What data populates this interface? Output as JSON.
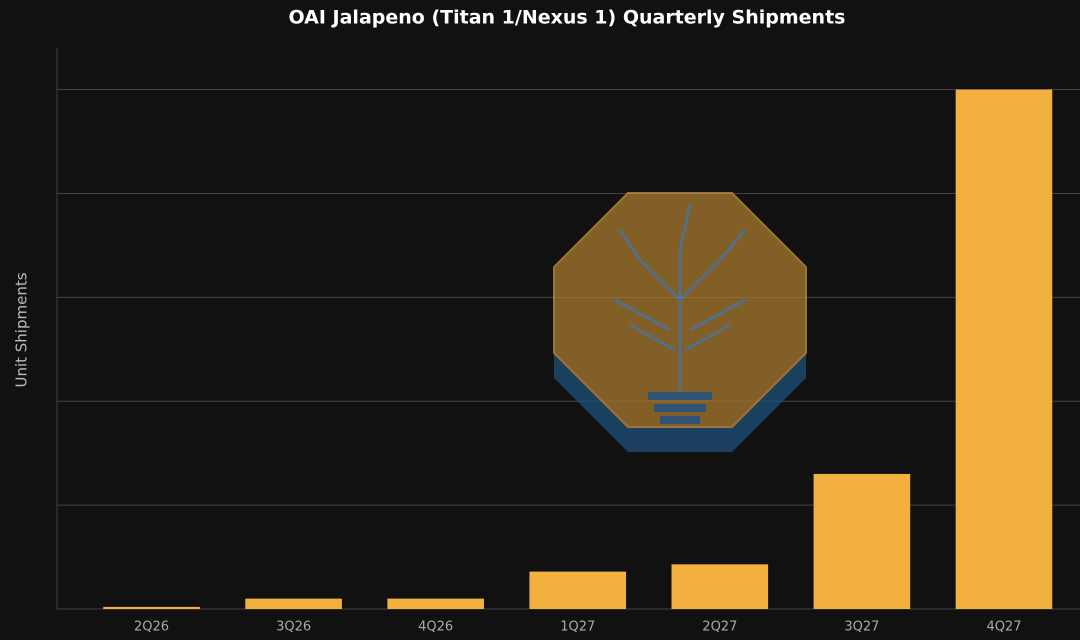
{
  "chart_data": {
    "type": "bar",
    "title": "OAI Jalapeno (Titan 1/Nexus 1) Quarterly Shipments",
    "y_label": "Unit Shipments",
    "categories": [
      "2Q26",
      "3Q26",
      "4Q26",
      "1Q27",
      "2Q27",
      "3Q27",
      "4Q27"
    ],
    "values": [
      0.02,
      0.1,
      0.1,
      0.36,
      0.43,
      1.3,
      5.0
    ],
    "color": "#f2b03f",
    "ylim": [
      0,
      5.4
    ],
    "yticks": [
      0,
      1,
      2,
      3,
      4,
      5
    ],
    "tick_labels": false,
    "grid": true
  }
}
